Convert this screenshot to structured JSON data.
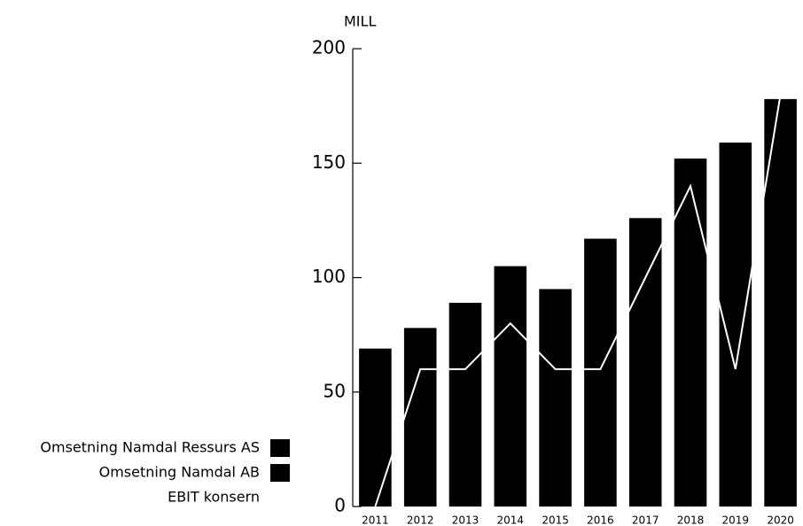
{
  "chart_data": {
    "type": "bar",
    "unit_label": "MILL",
    "categories": [
      "2011",
      "2012",
      "2013",
      "2014",
      "2015",
      "2016",
      "2017",
      "2018",
      "2019",
      "2020"
    ],
    "series": [
      {
        "name": "Omsetning Namdal Ressurs AS",
        "color": "#000000",
        "values": [
          69,
          78,
          89,
          105,
          95,
          117,
          126,
          152,
          159,
          178
        ]
      },
      {
        "name": "Omsetning Namdal AB",
        "color": "#000000",
        "values": [
          null,
          null,
          null,
          null,
          null,
          null,
          null,
          null,
          null,
          null
        ]
      },
      {
        "name": "EBIT konsern",
        "type": "line",
        "color": "#ffffff",
        "values": [
          0,
          60,
          60,
          80,
          60,
          60,
          100,
          140,
          60,
          180
        ]
      }
    ],
    "ylim": [
      0,
      200
    ],
    "yticks": [
      0,
      50,
      100,
      150,
      200
    ],
    "stacked": true
  }
}
